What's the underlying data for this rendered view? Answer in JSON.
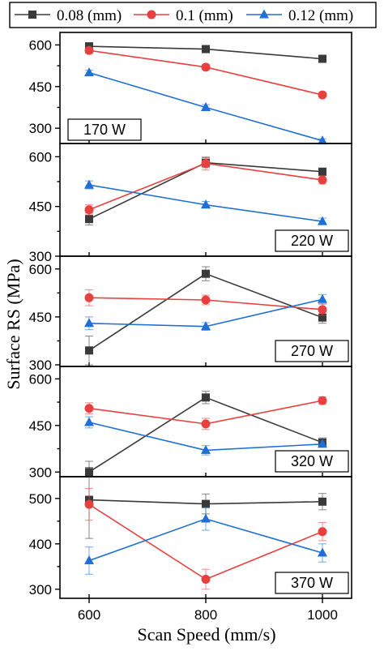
{
  "chart_data": {
    "type": "line",
    "xlabel": "Scan Speed (mm/s)",
    "ylabel": "Surface RS (MPa)",
    "x": [
      600,
      800,
      1000
    ],
    "x_ticks": [
      "600",
      "800",
      "1000"
    ],
    "xlim": [
      550,
      1050
    ],
    "legend": {
      "placement": "top",
      "entries": [
        {
          "name": "0.08 (mm)",
          "color": "#3a3a3a",
          "marker": "square"
        },
        {
          "name": "0.1 (mm)",
          "color": "#e8403f",
          "marker": "circle"
        },
        {
          "name": "0.12 (mm)",
          "color": "#1f6fd6",
          "marker": "triangle"
        }
      ]
    },
    "panels": [
      {
        "label": "170 W",
        "ylim": [
          245,
          645
        ],
        "yticks": [
          300,
          450,
          600
        ],
        "series": [
          {
            "name": "0.08 (mm)",
            "values": [
              595,
              585,
              550
            ],
            "errors": [
              12,
              10,
              8
            ]
          },
          {
            "name": "0.1 (mm)",
            "values": [
              580,
              520,
              420
            ],
            "errors": [
              10,
              9,
              7
            ]
          },
          {
            "name": "0.12 (mm)",
            "values": [
              500,
              375,
              255
            ],
            "errors": [
              9,
              10,
              7
            ]
          }
        ]
      },
      {
        "label": "220 W",
        "ylim": [
          300,
          640
        ],
        "yticks": [
          300,
          450,
          600
        ],
        "series": [
          {
            "name": "0.08 (mm)",
            "values": [
              412,
              582,
              555
            ],
            "errors": [
              18,
              15,
              8
            ]
          },
          {
            "name": "0.1 (mm)",
            "values": [
              440,
              580,
              530
            ],
            "errors": [
              15,
              20,
              12
            ]
          },
          {
            "name": "0.12 (mm)",
            "values": [
              515,
              455,
              405
            ],
            "errors": [
              12,
              10,
              10
            ]
          }
        ]
      },
      {
        "label": "270 W",
        "ylim": [
          295,
          640
        ],
        "yticks": [
          300,
          450,
          600
        ],
        "series": [
          {
            "name": "0.08 (mm)",
            "values": [
              345,
              585,
              448
            ],
            "errors": [
              45,
              22,
              18
            ]
          },
          {
            "name": "0.1 (mm)",
            "values": [
              510,
              503,
              473
            ],
            "errors": [
              25,
              15,
              18
            ]
          },
          {
            "name": "0.12 (mm)",
            "values": [
              430,
              420,
              505
            ],
            "errors": [
              20,
              12,
              15
            ]
          }
        ]
      },
      {
        "label": "320 W",
        "ylim": [
          285,
          640
        ],
        "yticks": [
          300,
          450,
          600
        ],
        "series": [
          {
            "name": "0.08 (mm)",
            "values": [
              300,
              540,
              395
            ],
            "errors": [
              15,
              20,
              15
            ]
          },
          {
            "name": "0.1 (mm)",
            "values": [
              505,
              455,
              530
            ],
            "errors": [
              18,
              18,
              12
            ]
          },
          {
            "name": "0.12 (mm)",
            "values": [
              460,
              370,
              390
            ],
            "errors": [
              18,
              15,
              10
            ]
          }
        ]
      },
      {
        "label": "370 W",
        "ylim": [
          280,
          548
        ],
        "yticks": [
          300,
          400,
          500
        ],
        "series": [
          {
            "name": "0.08 (mm)",
            "values": [
              497,
              488,
              493
            ],
            "errors": [
              85,
              22,
              18
            ]
          },
          {
            "name": "0.1 (mm)",
            "values": [
              487,
              322,
              427
            ],
            "errors": [
              35,
              22,
              20
            ]
          },
          {
            "name": "0.12 (mm)",
            "values": [
              363,
              455,
              380
            ],
            "errors": [
              30,
              25,
              20
            ]
          }
        ]
      }
    ]
  }
}
